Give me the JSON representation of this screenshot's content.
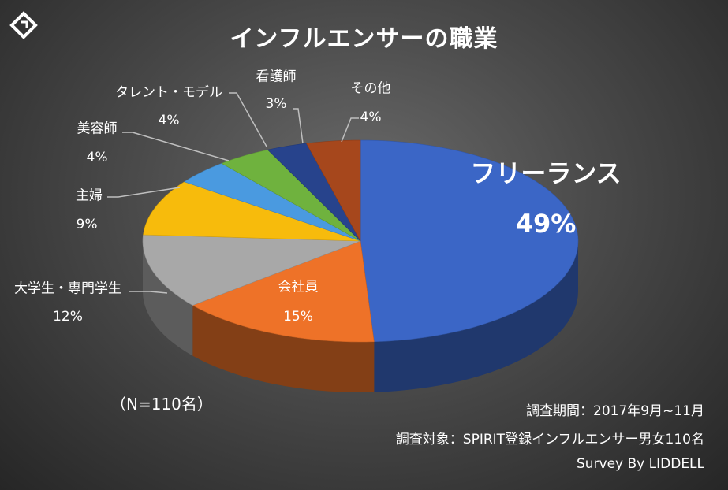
{
  "chart_data": {
    "type": "pie",
    "title": "インフルエンサーの職業",
    "slices": [
      {
        "label": "フリーランス",
        "pct_label": "49%",
        "value": 49,
        "color": "#3b66c6"
      },
      {
        "label": "会社員",
        "pct_label": "15%",
        "value": 15,
        "color": "#ee7228"
      },
      {
        "label": "大学生・専門学生",
        "pct_label": "12%",
        "value": 12,
        "color": "#a8a8a8"
      },
      {
        "label": "主婦",
        "pct_label": "9%",
        "value": 9,
        "color": "#f7bb0c"
      },
      {
        "label": "美容師",
        "pct_label": "4%",
        "value": 4,
        "color": "#4a9ae0"
      },
      {
        "label": "タレント・モデル",
        "pct_label": "4%",
        "value": 4,
        "color": "#6fb23e"
      },
      {
        "label": "看護師",
        "pct_label": "3%",
        "value": 3,
        "color": "#27438c"
      },
      {
        "label": "その他",
        "pct_label": "4%",
        "value": 4,
        "color": "#a6471c"
      }
    ]
  },
  "sample_size": "（N=110名）",
  "footer": {
    "period": "調査期間：2017年9月~11月",
    "target": "調査対象：SPIRIT登録インフルエンサー男女110名",
    "credit": "Survey By LIDDELL"
  }
}
